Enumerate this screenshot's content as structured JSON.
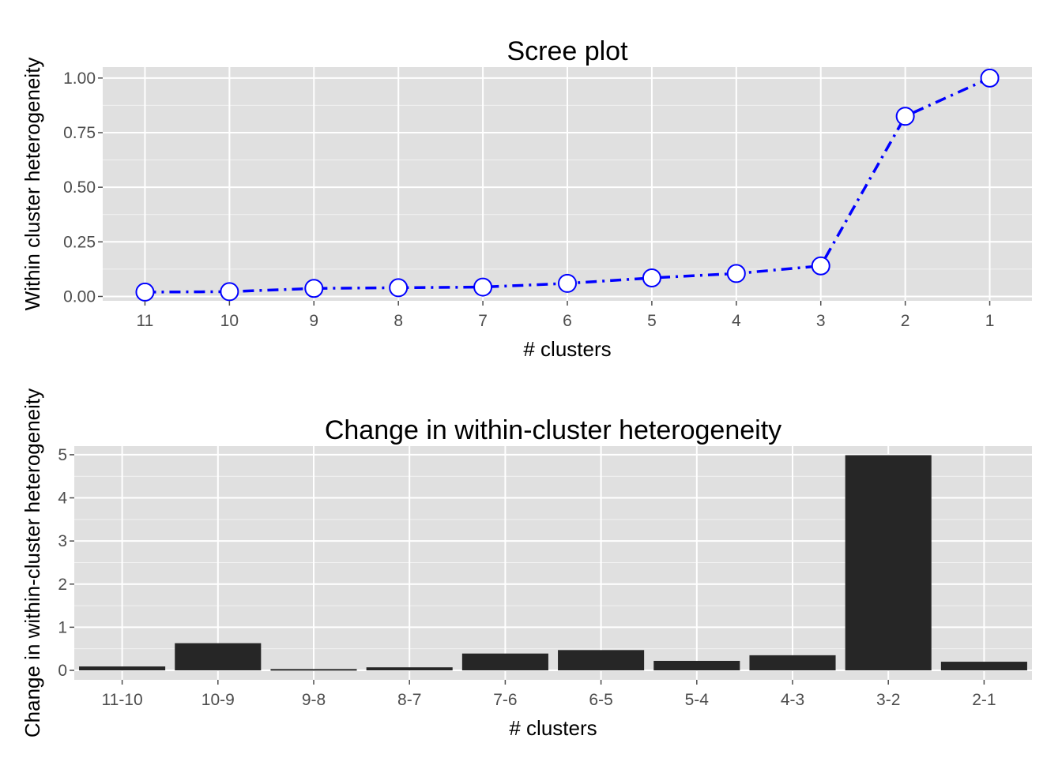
{
  "chart_data": [
    {
      "type": "line",
      "title": "Scree plot",
      "xlabel": "# clusters",
      "ylabel": "Within cluster heterogeneity",
      "categories": [
        "11",
        "10",
        "9",
        "8",
        "7",
        "6",
        "5",
        "4",
        "3",
        "2",
        "1"
      ],
      "values": [
        0.02,
        0.022,
        0.037,
        0.04,
        0.043,
        0.06,
        0.085,
        0.105,
        0.14,
        0.825,
        1.0
      ],
      "yticks": [
        "0.00",
        "0.25",
        "0.50",
        "0.75",
        "1.00"
      ],
      "ylim": [
        -0.02,
        1.05
      ],
      "line_color": "#0000ff",
      "line_style": "dash-dot",
      "marker_fill": "#ffffff",
      "marker_stroke": "#0000ff",
      "grid": true,
      "panel_color": "#e0e0e0"
    },
    {
      "type": "bar",
      "title": "Change in within-cluster heterogeneity",
      "xlabel": "# clusters",
      "ylabel": "Change in within-cluster heterogeneity",
      "categories": [
        "11-10",
        "10-9",
        "9-8",
        "8-7",
        "7-6",
        "6-5",
        "5-4",
        "4-3",
        "3-2",
        "2-1"
      ],
      "values": [
        0.09,
        0.63,
        0.03,
        0.07,
        0.39,
        0.47,
        0.22,
        0.35,
        4.99,
        0.2
      ],
      "yticks": [
        "0",
        "1",
        "2",
        "3",
        "4",
        "5"
      ],
      "ylim": [
        -0.22,
        5.2
      ],
      "bar_color": "#262626",
      "grid": true,
      "panel_color": "#e0e0e0"
    }
  ]
}
